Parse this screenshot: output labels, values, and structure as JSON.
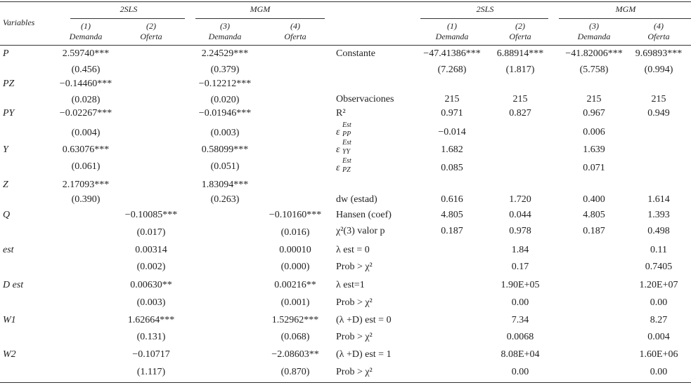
{
  "left": {
    "header": {
      "variables": "Variables",
      "groups": [
        "2SLS",
        "MGM"
      ],
      "columns": [
        {
          "number": "(1)",
          "name": "Demanda"
        },
        {
          "number": "(2)",
          "name": "Oferta"
        },
        {
          "number": "(3)",
          "name": "Demanda"
        },
        {
          "number": "(4)",
          "name": "Oferta"
        }
      ]
    },
    "rows": [
      {
        "label": "P",
        "cells": [
          "2.59740***",
          null,
          "2.24529***",
          null
        ]
      },
      {
        "label": null,
        "cells": [
          "(0.456)",
          null,
          "(0.379)",
          null
        ]
      },
      {
        "label": "PZ",
        "cells": [
          "−0.14460***",
          null,
          "−0.12212***",
          null
        ]
      },
      {
        "label": null,
        "cells": [
          "(0.028)",
          null,
          "(0.020)",
          null
        ]
      },
      {
        "label": "PY",
        "cells": [
          "−0.02267***",
          null,
          "−0.01946***",
          null
        ]
      },
      {
        "label": null,
        "cells": [
          "(0.004)",
          null,
          "(0.003)",
          null
        ]
      },
      {
        "label": "Y",
        "cells": [
          "0.63076***",
          null,
          "0.58099***",
          null
        ]
      },
      {
        "label": null,
        "cells": [
          "(0.061)",
          null,
          "(0.051)",
          null
        ]
      },
      {
        "label": "Z",
        "cells": [
          "2.17093***",
          null,
          "1.83094***",
          null
        ]
      },
      {
        "label": null,
        "cells": [
          "(0.390)",
          null,
          "(0.263)",
          null
        ]
      },
      {
        "label": "Q",
        "cells": [
          null,
          "−0.10085***",
          null,
          "−0.10160***"
        ]
      },
      {
        "label": null,
        "cells": [
          null,
          "(0.017)",
          null,
          "(0.016)"
        ]
      },
      {
        "label": "est",
        "cells": [
          null,
          "0.00314",
          null,
          "0.00010"
        ]
      },
      {
        "label": null,
        "cells": [
          null,
          "(0.002)",
          null,
          "(0.000)"
        ]
      },
      {
        "label": "D est",
        "cells": [
          null,
          "0.00630**",
          null,
          "0.00216**"
        ]
      },
      {
        "label": null,
        "cells": [
          null,
          "(0.003)",
          null,
          "(0.001)"
        ]
      },
      {
        "label": "W1",
        "cells": [
          null,
          "1.62664***",
          null,
          "1.52962***"
        ]
      },
      {
        "label": null,
        "cells": [
          null,
          "(0.131)",
          null,
          "(0.068)"
        ]
      },
      {
        "label": "W2",
        "cells": [
          null,
          "−0.10717",
          null,
          "−2.08603**"
        ]
      },
      {
        "label": null,
        "cells": [
          null,
          "(1.117)",
          null,
          "(0.870)"
        ]
      }
    ]
  },
  "right": {
    "header": {
      "groups": [
        "2SLS",
        "MGM"
      ],
      "columns": [
        {
          "number": "(1)",
          "name": "Demanda"
        },
        {
          "number": "(2)",
          "name": "Oferta"
        },
        {
          "number": "(3)",
          "name": "Demanda"
        },
        {
          "number": "(4)",
          "name": "Oferta"
        }
      ]
    },
    "rows": [
      {
        "label": "Constante",
        "cells": [
          "−47.41386***",
          "6.88914***",
          "−41.82006***",
          "9.69893***"
        ]
      },
      {
        "label": null,
        "cells": [
          "(7.268)",
          "(1.817)",
          "(5.758)",
          "(0.994)"
        ]
      },
      {
        "label": "Observaciones",
        "cells": [
          "215",
          "215",
          "215",
          "215"
        ]
      },
      {
        "label": "R²",
        "cells": [
          "0.971",
          "0.827",
          "0.967",
          "0.949"
        ]
      },
      {
        "label": {
          "base": "ε",
          "sup": "Est",
          "sub": "PP"
        },
        "cells": [
          "−0.014",
          null,
          "0.006",
          null
        ]
      },
      {
        "label": {
          "base": "ε",
          "sup": "Est",
          "sub": "YY"
        },
        "cells": [
          "1.682",
          null,
          "1.639",
          null
        ]
      },
      {
        "label": {
          "base": "ε",
          "sup": "Est",
          "sub": "PZ"
        },
        "cells": [
          "0.085",
          null,
          "0.071",
          null
        ]
      },
      {
        "label": "dw (estad)",
        "cells": [
          "0.616",
          "1.720",
          "0.400",
          "1.614"
        ]
      },
      {
        "label": "Hansen (coef)",
        "cells": [
          "4.805",
          "0.044",
          "4.805",
          "1.393"
        ]
      },
      {
        "label": "χ²(3) valor p",
        "cells": [
          "0.187",
          "0.978",
          "0.187",
          "0.498"
        ]
      },
      {
        "label": "λ est = 0",
        "cells": [
          null,
          "1.84",
          null,
          "0.11"
        ]
      },
      {
        "label": "Prob > χ²",
        "cells": [
          null,
          "0.17",
          null,
          "0.7405"
        ]
      },
      {
        "label": "λ est=1",
        "cells": [
          null,
          "1.90E+05",
          null,
          "1.20E+07"
        ]
      },
      {
        "label": "Prob > χ²",
        "cells": [
          null,
          "0.00",
          null,
          "0.00"
        ]
      },
      {
        "label": "(λ +D) est = 0",
        "cells": [
          null,
          "7.34",
          null,
          "8.27"
        ]
      },
      {
        "label": "Prob > χ²",
        "cells": [
          null,
          "0.0068",
          null,
          "0.004"
        ]
      },
      {
        "label": "(λ +D) est = 1",
        "cells": [
          null,
          "8.08E+04",
          null,
          "1.60E+06"
        ]
      },
      {
        "label": "Prob > χ²",
        "cells": [
          null,
          "0.00",
          null,
          "0.00"
        ]
      }
    ]
  }
}
